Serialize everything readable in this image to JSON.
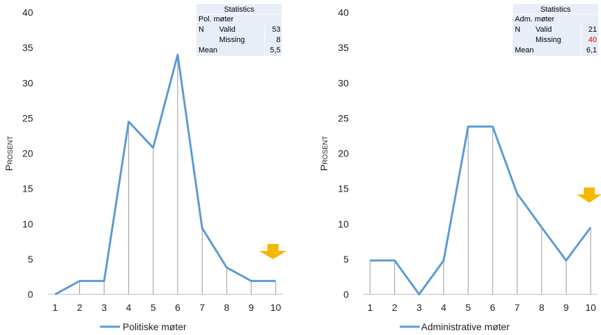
{
  "colors": {
    "line": "#5B9BD5",
    "arrow": "#F5B800",
    "drop": "#9a9a9a",
    "stat_bg": "#E8EEF8",
    "missing_highlight": "#E00000"
  },
  "chart_data": [
    {
      "type": "line",
      "ylabel": "Prosent",
      "legend": "Politiske møter",
      "legend_placement": "bottom",
      "x": [
        1,
        2,
        3,
        4,
        5,
        6,
        7,
        8,
        9,
        10
      ],
      "ylim": [
        0,
        40
      ],
      "yticks": [
        0,
        5,
        10,
        15,
        20,
        25,
        30,
        35,
        40
      ],
      "series": [
        {
          "name": "Politiske møter",
          "values": [
            0,
            1.9,
            1.9,
            24.5,
            20.8,
            34.0,
            9.4,
            3.8,
            1.9,
            1.9
          ]
        }
      ],
      "grid": false,
      "stats": {
        "title": "Statistics",
        "variable": "Pol. møter",
        "n_label": "N",
        "valid_label": "Valid",
        "valid": "53",
        "missing_label": "Missing",
        "missing": "8",
        "mean_label": "Mean",
        "mean": "5,5"
      },
      "arrow_icon": "down-arrow-icon"
    },
    {
      "type": "line",
      "ylabel": "Prosent",
      "legend": "Administrative møter",
      "legend_placement": "bottom",
      "x": [
        1,
        2,
        3,
        4,
        5,
        6,
        7,
        8,
        9,
        10
      ],
      "ylim": [
        0,
        40
      ],
      "yticks": [
        0,
        5,
        10,
        15,
        20,
        25,
        30,
        35,
        40
      ],
      "series": [
        {
          "name": "Administrative møter",
          "values": [
            4.8,
            4.8,
            0,
            4.8,
            23.8,
            23.8,
            14.3,
            9.5,
            4.8,
            9.5
          ]
        }
      ],
      "grid": false,
      "stats": {
        "title": "Statistics",
        "variable": "Adm. møter",
        "n_label": "N",
        "valid_label": "Valid",
        "valid": "21",
        "missing_label": "Missing",
        "missing": "40",
        "mean_label": "Mean",
        "mean": "6,1"
      },
      "arrow_icon": "down-arrow-icon"
    }
  ]
}
